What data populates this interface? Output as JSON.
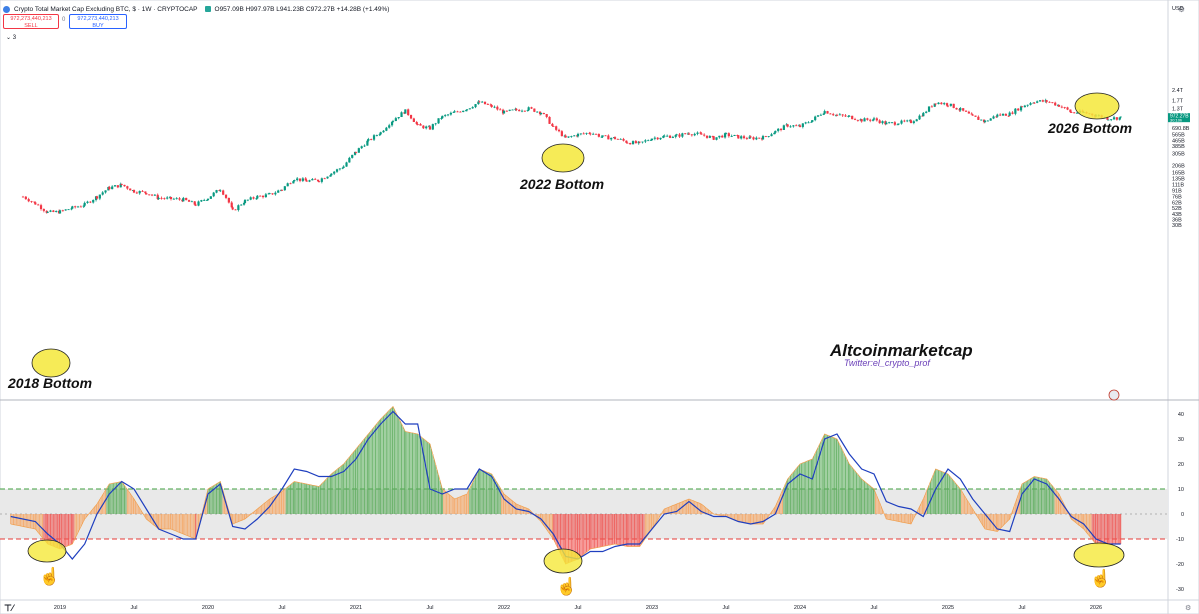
{
  "header": {
    "symbol_title": "Crypto Total Market Cap Excluding BTC, $ · 1W · CRYPTOCAP",
    "ohlc": "O957.09B H997.97B L941.23B C972.27B +14.28B (+1.49%)",
    "sell_price": "972,273,440,213",
    "sell_label": "SELL",
    "spread": "0",
    "buy_price": "972,273,440,213",
    "buy_label": "BUY",
    "collapse_label": "⌄ 3"
  },
  "colors": {
    "up_candle": "#089981",
    "down_candle": "#f23645",
    "osc_line": "#1f3fbf",
    "hist_green": "#5cab5c",
    "hist_orange": "#f5a561",
    "hist_red": "#ef5350",
    "band_fill": "#e9e9e9",
    "upper_band": "#3f9f3f",
    "lower_band": "#e53935",
    "marker": "#f5e83a"
  },
  "chart_data": [
    {
      "type": "candlestick",
      "title": "Crypto Total Market Cap Excluding BTC",
      "scale": "log",
      "y_unit": "USD",
      "y_ticks": [
        "2.4T",
        "1.7T",
        "1.3T",
        "1.0T",
        "690.8B",
        "565B",
        "465B",
        "385B",
        "305B",
        "206B",
        "165B",
        "135B",
        "111B",
        "91B",
        "76B",
        "62B",
        "52B",
        "43B",
        "36B",
        "30B"
      ],
      "last_price_label": "972.27B",
      "last_price_sublabel": "30:10h",
      "currency_label": "USD",
      "close_series": [
        [
          "2018-10",
          75
        ],
        [
          "2018-11",
          60
        ],
        [
          "2018-12",
          45
        ],
        [
          "2019-01",
          46
        ],
        [
          "2019-02",
          52
        ],
        [
          "2019-03",
          58
        ],
        [
          "2019-04",
          75
        ],
        [
          "2019-05",
          100
        ],
        [
          "2019-06",
          110
        ],
        [
          "2019-07",
          90
        ],
        [
          "2019-08",
          85
        ],
        [
          "2019-09",
          72
        ],
        [
          "2019-10",
          70
        ],
        [
          "2019-11",
          68
        ],
        [
          "2019-12",
          58
        ],
        [
          "2020-01",
          72
        ],
        [
          "2020-02",
          96
        ],
        [
          "2020-03",
          47
        ],
        [
          "2020-04",
          65
        ],
        [
          "2020-05",
          75
        ],
        [
          "2020-06",
          80
        ],
        [
          "2020-07",
          95
        ],
        [
          "2020-08",
          135
        ],
        [
          "2020-09",
          125
        ],
        [
          "2020-10",
          128
        ],
        [
          "2020-11",
          160
        ],
        [
          "2020-12",
          200
        ],
        [
          "2021-01",
          320
        ],
        [
          "2021-02",
          460
        ],
        [
          "2021-03",
          600
        ],
        [
          "2021-04",
          900
        ],
        [
          "2021-05",
          1200
        ],
        [
          "2021-06",
          750
        ],
        [
          "2021-07",
          690
        ],
        [
          "2021-08",
          1000
        ],
        [
          "2021-09",
          1150
        ],
        [
          "2021-10",
          1300
        ],
        [
          "2021-11",
          1600
        ],
        [
          "2021-12",
          1400
        ],
        [
          "2022-01",
          1150
        ],
        [
          "2022-02",
          1250
        ],
        [
          "2022-03",
          1300
        ],
        [
          "2022-04",
          1150
        ],
        [
          "2022-05",
          700
        ],
        [
          "2022-06",
          500
        ],
        [
          "2022-07",
          560
        ],
        [
          "2022-08",
          600
        ],
        [
          "2022-09",
          520
        ],
        [
          "2022-10",
          500
        ],
        [
          "2022-11",
          440
        ],
        [
          "2022-12",
          420
        ],
        [
          "2023-01",
          500
        ],
        [
          "2023-02",
          530
        ],
        [
          "2023-03",
          540
        ],
        [
          "2023-04",
          590
        ],
        [
          "2023-05",
          560
        ],
        [
          "2023-06",
          500
        ],
        [
          "2023-07",
          560
        ],
        [
          "2023-08",
          520
        ],
        [
          "2023-09",
          500
        ],
        [
          "2023-10",
          510
        ],
        [
          "2023-11",
          620
        ],
        [
          "2023-12",
          760
        ],
        [
          "2024-01",
          730
        ],
        [
          "2024-02",
          900
        ],
        [
          "2024-03",
          1200
        ],
        [
          "2024-04",
          1050
        ],
        [
          "2024-05",
          1000
        ],
        [
          "2024-06",
          900
        ],
        [
          "2024-07",
          920
        ],
        [
          "2024-08",
          800
        ],
        [
          "2024-09",
          830
        ],
        [
          "2024-10",
          850
        ],
        [
          "2024-11",
          1100
        ],
        [
          "2024-12",
          1600
        ],
        [
          "2025-01",
          1500
        ],
        [
          "2025-02",
          1250
        ],
        [
          "2025-03",
          1000
        ],
        [
          "2025-04",
          860
        ],
        [
          "2025-05",
          1050
        ],
        [
          "2025-06",
          1100
        ],
        [
          "2025-07",
          1400
        ],
        [
          "2025-08",
          1650
        ],
        [
          "2025-09",
          1650
        ],
        [
          "2025-10",
          1450
        ],
        [
          "2025-11",
          1150
        ],
        [
          "2025-12",
          1150
        ],
        [
          "2026-01",
          1050
        ],
        [
          "2026-02",
          950
        ],
        [
          "2026-03",
          972
        ]
      ],
      "annotations": [
        "2018 Bottom",
        "2022 Bottom",
        "2026 Bottom"
      ],
      "watermark_title": "Altcoinmarketcap",
      "watermark_handle": "Twitter:el_crypto_prof"
    },
    {
      "type": "oscillator",
      "scale": "linear",
      "ylim": [
        -33,
        45
      ],
      "y_ticks": [
        40,
        30,
        20,
        10,
        0,
        -10,
        -20,
        -30
      ],
      "bands": {
        "upper": 10,
        "zero": 0,
        "lower": -10
      },
      "line_series": [
        [
          "2018-09",
          -1
        ],
        [
          "2018-11",
          -3
        ],
        [
          "2018-12",
          -8
        ],
        [
          "2019-01",
          -12
        ],
        [
          "2019-02",
          -18
        ],
        [
          "2019-03",
          -12
        ],
        [
          "2019-04",
          0
        ],
        [
          "2019-05",
          8
        ],
        [
          "2019-06",
          13
        ],
        [
          "2019-07",
          10
        ],
        [
          "2019-08",
          2
        ],
        [
          "2019-09",
          -6
        ],
        [
          "2019-10",
          -8
        ],
        [
          "2019-11",
          -10
        ],
        [
          "2019-12",
          -10
        ],
        [
          "2020-01",
          8
        ],
        [
          "2020-02",
          12
        ],
        [
          "2020-03",
          -5
        ],
        [
          "2020-04",
          -6
        ],
        [
          "2020-05",
          -2
        ],
        [
          "2020-06",
          3
        ],
        [
          "2020-07",
          10
        ],
        [
          "2020-08",
          18
        ],
        [
          "2020-09",
          17
        ],
        [
          "2020-10",
          15
        ],
        [
          "2020-11",
          15
        ],
        [
          "2020-12",
          17
        ],
        [
          "2021-01",
          22
        ],
        [
          "2021-02",
          30
        ],
        [
          "2021-03",
          36
        ],
        [
          "2021-04",
          41
        ],
        [
          "2021-05",
          36
        ],
        [
          "2021-06",
          36
        ],
        [
          "2021-07",
          10
        ],
        [
          "2021-08",
          8
        ],
        [
          "2021-09",
          10
        ],
        [
          "2021-10",
          10
        ],
        [
          "2021-11",
          18
        ],
        [
          "2021-12",
          15
        ],
        [
          "2022-01",
          6
        ],
        [
          "2022-02",
          2
        ],
        [
          "2022-03",
          1
        ],
        [
          "2022-04",
          -2
        ],
        [
          "2022-05",
          -8
        ],
        [
          "2022-06",
          -17
        ],
        [
          "2022-07",
          -18
        ],
        [
          "2022-08",
          -15
        ],
        [
          "2022-09",
          -15
        ],
        [
          "2022-10",
          -13
        ],
        [
          "2022-11",
          -12
        ],
        [
          "2022-12",
          -12
        ],
        [
          "2023-01",
          -6
        ],
        [
          "2023-02",
          0
        ],
        [
          "2023-03",
          1
        ],
        [
          "2023-04",
          5
        ],
        [
          "2023-05",
          1
        ],
        [
          "2023-06",
          -1
        ],
        [
          "2023-07",
          -1
        ],
        [
          "2023-08",
          -3
        ],
        [
          "2023-09",
          -4
        ],
        [
          "2023-10",
          -3
        ],
        [
          "2023-11",
          0
        ],
        [
          "2023-12",
          12
        ],
        [
          "2024-01",
          16
        ],
        [
          "2024-02",
          14
        ],
        [
          "2024-03",
          30
        ],
        [
          "2024-04",
          32
        ],
        [
          "2024-05",
          24
        ],
        [
          "2024-06",
          18
        ],
        [
          "2024-07",
          16
        ],
        [
          "2024-08",
          5
        ],
        [
          "2024-09",
          3
        ],
        [
          "2024-10",
          2
        ],
        [
          "2024-11",
          -1
        ],
        [
          "2024-12",
          10
        ],
        [
          "2025-01",
          18
        ],
        [
          "2025-02",
          14
        ],
        [
          "2025-03",
          6
        ],
        [
          "2025-04",
          0
        ],
        [
          "2025-05",
          -6
        ],
        [
          "2025-06",
          -7
        ],
        [
          "2025-07",
          8
        ],
        [
          "2025-08",
          14
        ],
        [
          "2025-09",
          12
        ],
        [
          "2025-10",
          6
        ],
        [
          "2025-11",
          -1
        ],
        [
          "2025-12",
          -4
        ],
        [
          "2026-01",
          -10
        ],
        [
          "2026-02",
          -12
        ],
        [
          "2026-03",
          -12
        ]
      ],
      "histogram_series": [
        [
          "2018-09",
          -4
        ],
        [
          "2018-11",
          -6
        ],
        [
          "2018-12",
          -12
        ],
        [
          "2019-01",
          -14
        ],
        [
          "2019-02",
          -12
        ],
        [
          "2019-03",
          -2
        ],
        [
          "2019-04",
          4
        ],
        [
          "2019-05",
          12
        ],
        [
          "2019-06",
          13
        ],
        [
          "2019-07",
          6
        ],
        [
          "2019-08",
          -2
        ],
        [
          "2019-09",
          -6
        ],
        [
          "2019-10",
          -6
        ],
        [
          "2019-11",
          -8
        ],
        [
          "2019-12",
          -10
        ],
        [
          "2020-01",
          10
        ],
        [
          "2020-02",
          13
        ],
        [
          "2020-03",
          -4
        ],
        [
          "2020-04",
          -2
        ],
        [
          "2020-05",
          2
        ],
        [
          "2020-06",
          6
        ],
        [
          "2020-07",
          9
        ],
        [
          "2020-08",
          13
        ],
        [
          "2020-09",
          12
        ],
        [
          "2020-10",
          11
        ],
        [
          "2020-11",
          16
        ],
        [
          "2020-12",
          20
        ],
        [
          "2021-01",
          26
        ],
        [
          "2021-02",
          32
        ],
        [
          "2021-03",
          38
        ],
        [
          "2021-04",
          43
        ],
        [
          "2021-05",
          33
        ],
        [
          "2021-06",
          32
        ],
        [
          "2021-07",
          28
        ],
        [
          "2021-08",
          10
        ],
        [
          "2021-09",
          6
        ],
        [
          "2021-10",
          8
        ],
        [
          "2021-11",
          18
        ],
        [
          "2021-12",
          16
        ],
        [
          "2022-01",
          8
        ],
        [
          "2022-02",
          4
        ],
        [
          "2022-03",
          2
        ],
        [
          "2022-04",
          -3
        ],
        [
          "2022-05",
          -10
        ],
        [
          "2022-06",
          -20
        ],
        [
          "2022-07",
          -18
        ],
        [
          "2022-08",
          -14
        ],
        [
          "2022-09",
          -13
        ],
        [
          "2022-10",
          -12
        ],
        [
          "2022-11",
          -13
        ],
        [
          "2022-12",
          -13
        ],
        [
          "2023-01",
          -6
        ],
        [
          "2023-02",
          2
        ],
        [
          "2023-03",
          4
        ],
        [
          "2023-04",
          6
        ],
        [
          "2023-05",
          4
        ],
        [
          "2023-06",
          0
        ],
        [
          "2023-07",
          -1
        ],
        [
          "2023-08",
          -3
        ],
        [
          "2023-09",
          -4
        ],
        [
          "2023-10",
          -4
        ],
        [
          "2023-11",
          3
        ],
        [
          "2023-12",
          14
        ],
        [
          "2024-01",
          20
        ],
        [
          "2024-02",
          22
        ],
        [
          "2024-03",
          32
        ],
        [
          "2024-04",
          30
        ],
        [
          "2024-05",
          20
        ],
        [
          "2024-06",
          14
        ],
        [
          "2024-07",
          10
        ],
        [
          "2024-08",
          -2
        ],
        [
          "2024-09",
          -3
        ],
        [
          "2024-10",
          -4
        ],
        [
          "2024-11",
          6
        ],
        [
          "2024-12",
          18
        ],
        [
          "2025-01",
          16
        ],
        [
          "2025-02",
          10
        ],
        [
          "2025-03",
          2
        ],
        [
          "2025-04",
          -6
        ],
        [
          "2025-05",
          -7
        ],
        [
          "2025-06",
          -2
        ],
        [
          "2025-07",
          12
        ],
        [
          "2025-08",
          15
        ],
        [
          "2025-09",
          14
        ],
        [
          "2025-10",
          8
        ],
        [
          "2025-11",
          -2
        ],
        [
          "2025-12",
          -6
        ],
        [
          "2026-01",
          -12
        ],
        [
          "2026-02",
          -12
        ],
        [
          "2026-03",
          -12
        ]
      ]
    }
  ],
  "x_axis": {
    "ticks": [
      {
        "label": "2019",
        "date": "2019-01"
      },
      {
        "label": "Jul",
        "date": "2019-07"
      },
      {
        "label": "2020",
        "date": "2020-01"
      },
      {
        "label": "Jul",
        "date": "2020-07"
      },
      {
        "label": "2021",
        "date": "2021-01"
      },
      {
        "label": "Jul",
        "date": "2021-07"
      },
      {
        "label": "2022",
        "date": "2022-01"
      },
      {
        "label": "Jul",
        "date": "2022-07"
      },
      {
        "label": "2023",
        "date": "2023-01"
      },
      {
        "label": "Jul",
        "date": "2023-07"
      },
      {
        "label": "2024",
        "date": "2024-01"
      },
      {
        "label": "Jul",
        "date": "2024-07"
      },
      {
        "label": "2025",
        "date": "2025-01"
      },
      {
        "label": "Jul",
        "date": "2025-07"
      },
      {
        "label": "2026",
        "date": "2026-01"
      },
      {
        "label": "Jul",
        "date": "2026-07"
      }
    ]
  }
}
